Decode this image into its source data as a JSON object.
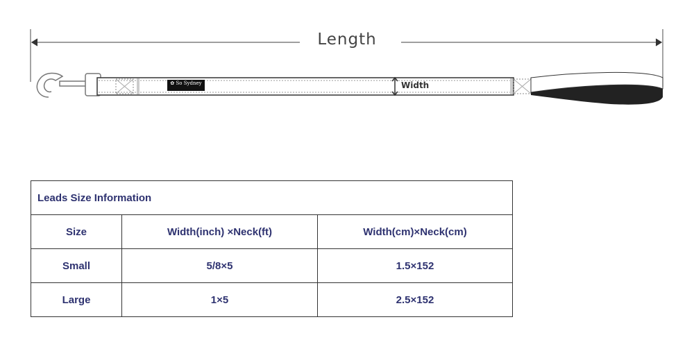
{
  "diagram": {
    "length_label": "Length",
    "width_label": "Width",
    "brand_logo": "So Sydney"
  },
  "table": {
    "title": "Leads Size Information",
    "headers": [
      "Size",
      "Width(inch) ×Neck(ft)",
      "Width(cm)×Neck(cm)"
    ],
    "rows": [
      [
        "Small",
        "5/8×5",
        "1.5×152"
      ],
      [
        "Large",
        "1×5",
        "2.5×152"
      ]
    ]
  }
}
